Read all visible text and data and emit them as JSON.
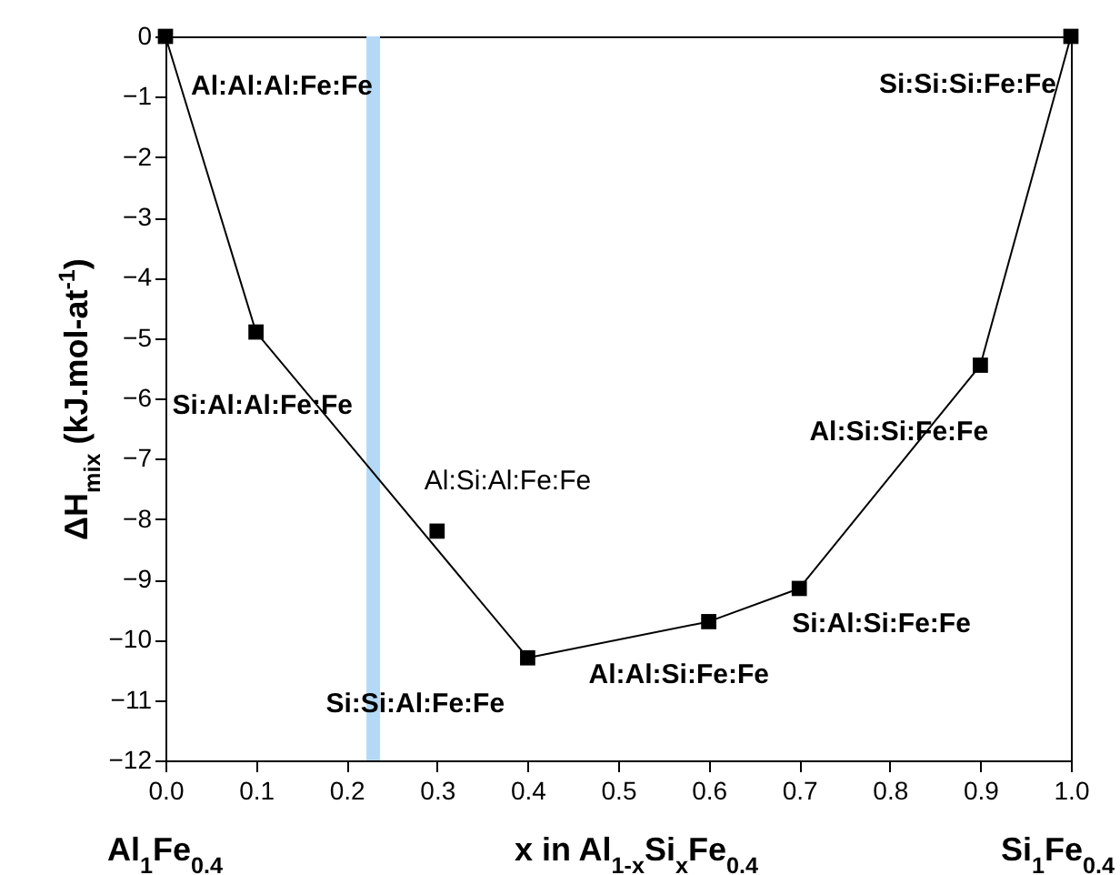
{
  "chart_data": {
    "type": "scatter",
    "xlabel": "x in Al$_{1-x}$Si$_{x}$Fe$_{0.4}$",
    "ylabel": "ΔH$_{mix}$ (kJ.mol-at$^{-1}$)",
    "xlim": [
      0,
      1
    ],
    "ylim": [
      -12,
      0
    ],
    "xticks": [
      {
        "value": 0,
        "label": "0.0"
      },
      {
        "value": 0.1,
        "label": "0.1"
      },
      {
        "value": 0.2,
        "label": "0.2"
      },
      {
        "value": 0.3,
        "label": "0.3"
      },
      {
        "value": 0.4,
        "label": "0.4"
      },
      {
        "value": 0.5,
        "label": "0.5"
      },
      {
        "value": 0.6,
        "label": "0.6"
      },
      {
        "value": 0.7,
        "label": "0.7"
      },
      {
        "value": 0.8,
        "label": "0.8"
      },
      {
        "value": 0.9,
        "label": "0.9"
      },
      {
        "value": 1,
        "label": "1.0"
      }
    ],
    "yticks": [
      {
        "value": -12,
        "label": "−12"
      },
      {
        "value": -11,
        "label": "−11"
      },
      {
        "value": -10,
        "label": "−10"
      },
      {
        "value": -9,
        "label": "−9"
      },
      {
        "value": -8,
        "label": "−8"
      },
      {
        "value": -7,
        "label": "−7"
      },
      {
        "value": -6,
        "label": "−6"
      },
      {
        "value": -5,
        "label": "−5"
      },
      {
        "value": -4,
        "label": "−4"
      },
      {
        "value": -3,
        "label": "−3"
      },
      {
        "value": -2,
        "label": "−2"
      },
      {
        "value": -1,
        "label": "−1"
      },
      0
    ],
    "grid": false,
    "series": [
      {
        "type": "line",
        "color": "#000000",
        "x": [
          0,
          0.1,
          0.4,
          0.6,
          0.7,
          0.9,
          1
        ],
        "values": [
          0,
          -4.9,
          -10.3,
          -9.7,
          -9.15,
          -5.45,
          0
        ]
      },
      {
        "marker": "square",
        "color": "#000000",
        "x": [
          0,
          0.1,
          0.3,
          0.4,
          0.6,
          0.7,
          0.9,
          1
        ],
        "values": [
          0,
          -4.9,
          -8.2,
          -10.3,
          -9.7,
          -9.15,
          -5.45,
          0
        ]
      }
    ],
    "bands": [
      {
        "axis": "x",
        "from": 0.222,
        "to": 0.237,
        "color": "#b3d9f7"
      }
    ],
    "annotations": [
      {
        "text": "Al:Al:Al:Fe:Fe",
        "x": 0,
        "y": 0
      },
      {
        "text": "Si:Al:Al:Fe:Fe",
        "x": 0.1,
        "y": -4.9
      },
      {
        "text": "Al:Si:Al:Fe:Fe",
        "x": 0.3,
        "y": -8.2
      },
      {
        "text": "Si:Si:Al:Fe:Fe",
        "x": 0.4,
        "y": -10.3
      },
      {
        "text": "Al:Al:Si:Fe:Fe",
        "x": 0.6,
        "y": -9.7
      },
      {
        "text": "Si:Al:Si:Fe:Fe",
        "x": 0.7,
        "y": -9.15
      },
      {
        "text": "Al:Si:Si:Fe:Fe",
        "x": 0.9,
        "y": -5.45
      },
      {
        "text": "Si:Si:Si:Fe:Fe",
        "x": 1,
        "y": 0
      },
      "Al$_{1}$Fe$_{0.4}$",
      "Si$_{1}$Fe$_{0.4}$"
    ]
  }
}
